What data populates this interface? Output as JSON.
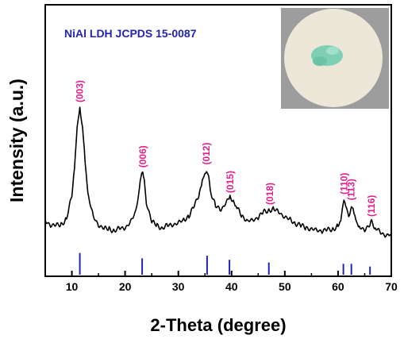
{
  "colors": {
    "pattern": "#000000",
    "reference": "#2424b4",
    "hkl_labels": "#e0208e",
    "photo_bg": "#9d9d9d",
    "photo_disc": "#ece7d8",
    "powder": "#7fcfb4"
  },
  "chart_data": {
    "type": "line",
    "xlabel": "2-Theta (degree)",
    "ylabel": "Intensity (a.u.)",
    "xlim": [
      5,
      70
    ],
    "ylim": [
      0,
      1
    ],
    "y_ticks_shown": false,
    "x_ticks": [
      10,
      20,
      30,
      40,
      50,
      60,
      70
    ],
    "x_tick_labels": [
      "10",
      "20",
      "30",
      "40",
      "50",
      "60",
      "70"
    ],
    "reference_label": "NiAl LDH  JCPDS 15-0087",
    "reference_lines": [
      {
        "x": 11.5,
        "h": 0.08
      },
      {
        "x": 23.2,
        "h": 0.06
      },
      {
        "x": 35.4,
        "h": 0.07
      },
      {
        "x": 39.6,
        "h": 0.055
      },
      {
        "x": 47.0,
        "h": 0.045
      },
      {
        "x": 61.0,
        "h": 0.04
      },
      {
        "x": 62.5,
        "h": 0.04
      },
      {
        "x": 66.0,
        "h": 0.03
      }
    ],
    "peaks": [
      {
        "label": "(003)",
        "x": 11.5,
        "y": 1.0
      },
      {
        "label": "(006)",
        "x": 23.3,
        "y": 0.56
      },
      {
        "label": "(012)",
        "x": 35.3,
        "y": 0.58
      },
      {
        "label": "(015)",
        "x": 39.7,
        "y": 0.39
      },
      {
        "label": "(018)",
        "x": 47.2,
        "y": 0.31
      },
      {
        "label": "(110)",
        "x": 61.1,
        "y": 0.38
      },
      {
        "label": "(113)",
        "x": 62.5,
        "y": 0.34
      },
      {
        "label": "(116)",
        "x": 66.3,
        "y": 0.23
      }
    ],
    "series": [
      {
        "x": [
          5,
          6,
          7,
          8,
          9,
          10,
          10.5,
          11,
          11.5,
          12,
          12.5,
          13,
          14,
          15,
          16,
          17,
          18,
          19,
          20,
          21,
          22,
          22.5,
          23,
          23.3,
          23.6,
          24,
          25,
          26,
          27,
          28,
          29,
          30,
          31,
          32,
          33,
          34,
          34.5,
          35,
          35.3,
          35.7,
          36,
          37,
          38,
          39,
          39.7,
          40.5,
          41,
          42,
          43,
          44,
          45,
          46,
          47,
          48,
          49,
          50,
          51,
          52,
          53,
          54,
          55,
          56,
          57,
          58,
          59,
          60,
          60.5,
          61.1,
          61.6,
          62,
          62.5,
          63,
          63.5,
          64,
          65,
          66,
          66.3,
          67,
          68,
          69,
          70
        ],
        "y": [
          0.23,
          0.21,
          0.2,
          0.21,
          0.25,
          0.4,
          0.6,
          0.85,
          1.0,
          0.88,
          0.62,
          0.42,
          0.26,
          0.21,
          0.18,
          0.18,
          0.17,
          0.18,
          0.19,
          0.22,
          0.3,
          0.42,
          0.53,
          0.56,
          0.5,
          0.36,
          0.23,
          0.2,
          0.19,
          0.2,
          0.21,
          0.22,
          0.24,
          0.27,
          0.33,
          0.43,
          0.5,
          0.56,
          0.58,
          0.52,
          0.44,
          0.33,
          0.31,
          0.36,
          0.39,
          0.37,
          0.32,
          0.27,
          0.23,
          0.24,
          0.26,
          0.29,
          0.31,
          0.31,
          0.29,
          0.26,
          0.24,
          0.22,
          0.2,
          0.19,
          0.18,
          0.17,
          0.17,
          0.17,
          0.18,
          0.2,
          0.24,
          0.38,
          0.3,
          0.27,
          0.34,
          0.28,
          0.22,
          0.19,
          0.18,
          0.2,
          0.23,
          0.19,
          0.15,
          0.14,
          0.14
        ]
      }
    ]
  }
}
